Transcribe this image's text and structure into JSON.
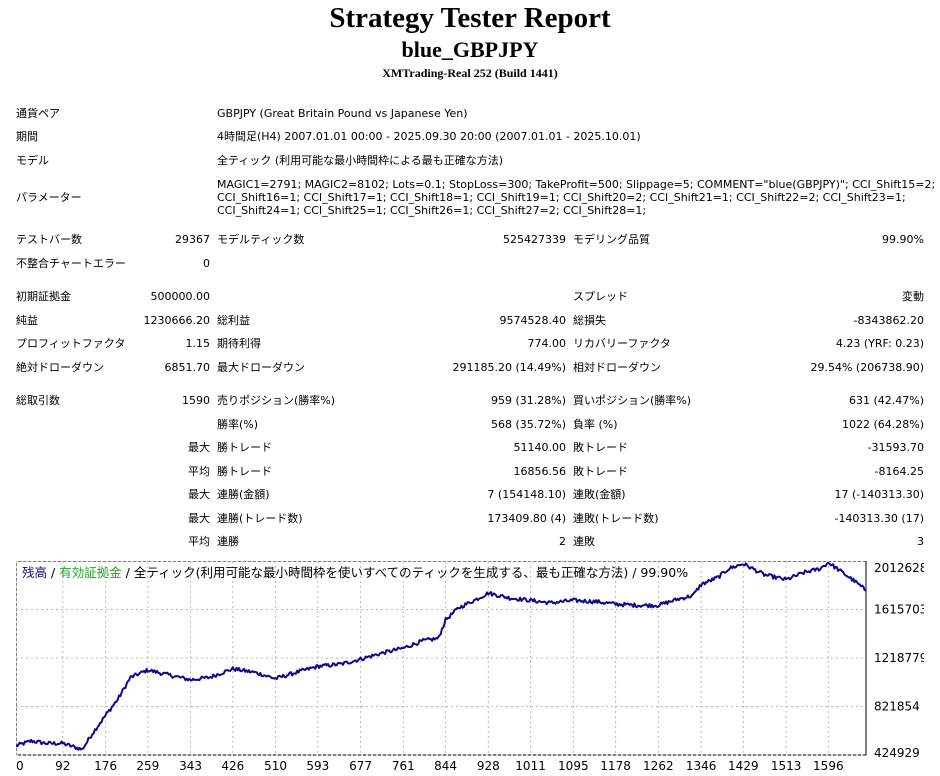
{
  "header": {
    "title": "Strategy Tester Report",
    "ea_name": "blue_GBPJPY",
    "server": "XMTrading-Real 252 (Build 1441)"
  },
  "info": {
    "symbol_label": "通貨ペア",
    "symbol_value": "GBPJPY (Great Britain Pound vs Japanese Yen)",
    "period_label": "期間",
    "period_value": "4時間足(H4) 2007.01.01 00:00 - 2025.09.30 20:00 (2007.01.01 - 2025.10.01)",
    "model_label": "モデル",
    "model_value": "全ティック (利用可能な最小時間枠による最も正確な方法)",
    "params_label": "パラメーター",
    "params_lines": [
      "MAGIC1=2791; MAGIC2=8102; Lots=0.1; StopLoss=300; TakeProfit=500; Slippage=5; COMMENT=\"blue(GBPJPY)\"; CCI_Shift15=2;",
      "CCI_Shift16=1; CCI_Shift17=1; CCI_Shift18=1; CCI_Shift19=1; CCI_Shift20=2; CCI_Shift21=1; CCI_Shift22=2; CCI_Shift23=1;",
      "CCI_Shift24=1; CCI_Shift25=1; CCI_Shift26=1; CCI_Shift27=2; CCI_Shift28=1;"
    ]
  },
  "stats": {
    "bars_label": "テストバー数",
    "bars_value": "29367",
    "ticks_label": "モデルティック数",
    "ticks_value": "525427339",
    "quality_label": "モデリング品質",
    "quality_value": "99.90%",
    "mismatch_label": "不整合チャートエラー",
    "mismatch_value": "0",
    "deposit_label": "初期証拠金",
    "deposit_value": "500000.00",
    "spread_label": "スプレッド",
    "spread_value": "変動",
    "net_label": "純益",
    "net_value": "1230666.20",
    "gross_profit_label": "総利益",
    "gross_profit_value": "9574528.40",
    "gross_loss_label": "総損失",
    "gross_loss_value": "-8343862.20",
    "pf_label": "プロフィットファクタ",
    "pf_value": "1.15",
    "expected_label": "期待利得",
    "expected_value": "774.00",
    "recovery_label": "リカバリーファクタ",
    "recovery_value": "4.23 (YRF: 0.23)",
    "abs_dd_label": "絶対ドローダウン",
    "abs_dd_value": "6851.70",
    "max_dd_label": "最大ドローダウン",
    "max_dd_value": "291185.20 (14.49%)",
    "rel_dd_label": "相対ドローダウン",
    "rel_dd_value": "29.54% (206738.90)",
    "total_trades_label": "総取引数",
    "total_trades_value": "1590",
    "short_label": "売りポジション(勝率%)",
    "short_value": "959 (31.28%)",
    "long_label": "買いポジション(勝率%)",
    "long_value": "631 (42.47%)",
    "win_label": "勝率(%)",
    "win_value": "568 (35.72%)",
    "loss_label": "負率 (%)",
    "loss_value": "1022 (64.28%)",
    "max_word": "最大",
    "avg_word": "平均",
    "largest_win_label": "勝トレード",
    "largest_win_value": "51140.00",
    "largest_loss_label": "敗トレード",
    "largest_loss_value": "-31593.70",
    "avg_win_label": "勝トレード",
    "avg_win_value": "16856.56",
    "avg_loss_label": "敗トレード",
    "avg_loss_value": "-8164.25",
    "max_consec_win_amt_label": "連勝(金額)",
    "max_consec_win_amt_value": "7 (154148.10)",
    "max_consec_loss_amt_label": "連敗(金額)",
    "max_consec_loss_amt_value": "17 (-140313.30)",
    "max_consec_win_trd_label": "連勝(トレード数)",
    "max_consec_win_trd_value": "173409.80 (4)",
    "max_consec_loss_trd_label": "連敗(トレード数)",
    "max_consec_loss_trd_value": "-140313.30 (17)",
    "avg_consec_win_label": "連勝",
    "avg_consec_win_value": "2",
    "avg_consec_loss_label": "連敗",
    "avg_consec_loss_value": "3"
  },
  "chart_data": {
    "type": "line",
    "legend": {
      "balance": "残高",
      "sep1": " / ",
      "equity": "有効証拠金",
      "sep2": " / ",
      "description": "全ティック(利用可能な最小時間枠を使いすべてのティックを生成する、最も正確な方法) / 99.90%"
    },
    "x_ticks": [
      "0",
      "92",
      "176",
      "259",
      "343",
      "426",
      "510",
      "593",
      "677",
      "761",
      "844",
      "928",
      "1011",
      "1095",
      "1178",
      "1262",
      "1346",
      "1429",
      "1513",
      "1596"
    ],
    "y_ticks": [
      "2012628",
      "1615703",
      "1218779",
      "821854",
      "424929"
    ],
    "xlim": [
      0,
      1670
    ],
    "ylim": [
      424929,
      2012628
    ],
    "grid": true,
    "colors": {
      "balance": "#0a0a8a",
      "equity": "#22a822",
      "grid": "#b8b8b8",
      "background": "#ffffff"
    },
    "series": [
      {
        "name": "残高",
        "x": [
          0,
          30,
          60,
          92,
          130,
          150,
          176,
          200,
          225,
          259,
          300,
          343,
          380,
          426,
          470,
          510,
          550,
          593,
          640,
          677,
          720,
          761,
          800,
          830,
          844,
          870,
          900,
          928,
          970,
          1011,
          1050,
          1095,
          1140,
          1178,
          1220,
          1262,
          1300,
          1330,
          1346,
          1380,
          1400,
          1429,
          1470,
          1513,
          1550,
          1580,
          1596,
          1620,
          1650,
          1670
        ],
        "y": [
          500000,
          540000,
          520000,
          520000,
          470000,
          600000,
          750000,
          880000,
          1060000,
          1120000,
          1080000,
          1040000,
          1060000,
          1130000,
          1100000,
          1050000,
          1100000,
          1150000,
          1170000,
          1210000,
          1260000,
          1300000,
          1360000,
          1380000,
          1530000,
          1630000,
          1690000,
          1750000,
          1710000,
          1690000,
          1670000,
          1690000,
          1680000,
          1660000,
          1650000,
          1650000,
          1700000,
          1730000,
          1820000,
          1880000,
          1950000,
          1990000,
          1900000,
          1860000,
          1920000,
          1950000,
          2000000,
          1930000,
          1840000,
          1770000
        ]
      }
    ]
  }
}
